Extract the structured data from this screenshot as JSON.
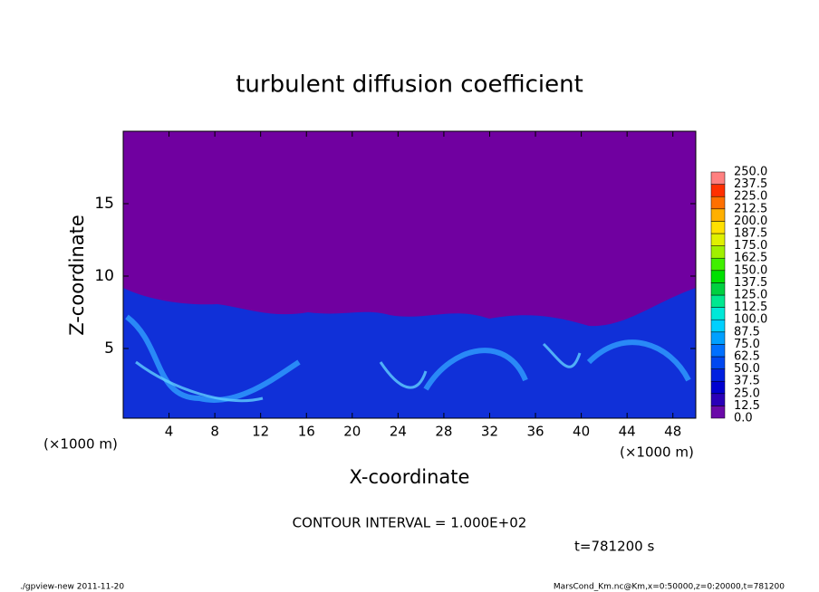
{
  "chart_data": {
    "type": "heatmap",
    "title": "turbulent diffusion coefficient",
    "xlabel": "X-coordinate",
    "ylabel": "Z-coordinate",
    "xunit": "(×1000 m)",
    "yunit": "(×1000 m)",
    "xlim": [
      0,
      50
    ],
    "xticks": [
      4,
      8,
      12,
      16,
      20,
      24,
      28,
      32,
      36,
      40,
      44,
      48
    ],
    "ylim": [
      0,
      20
    ],
    "yticks": [
      5,
      10,
      15
    ],
    "levels": [
      {
        "value": 0,
        "label": "0.0"
      },
      {
        "value": 12.5,
        "label": "12.5"
      },
      {
        "value": 25,
        "label": "25.0"
      },
      {
        "value": 37.5,
        "label": "37.5"
      },
      {
        "value": 50,
        "label": "50.0"
      },
      {
        "value": 62.5,
        "label": "62.5"
      },
      {
        "value": 75,
        "label": "75.0"
      },
      {
        "value": 87.5,
        "label": "87.5"
      },
      {
        "value": 100,
        "label": "100.0"
      },
      {
        "value": 112.5,
        "label": "112.5"
      },
      {
        "value": 125,
        "label": "125.0"
      },
      {
        "value": 137.5,
        "label": "137.5"
      },
      {
        "value": 150,
        "label": "150.0"
      },
      {
        "value": 162.5,
        "label": "162.5"
      },
      {
        "value": 175,
        "label": "175.0"
      },
      {
        "value": 187.5,
        "label": "187.5"
      },
      {
        "value": 200,
        "label": "200.0"
      },
      {
        "value": 212.5,
        "label": "212.5"
      },
      {
        "value": 225,
        "label": "225.0"
      },
      {
        "value": 237.5,
        "label": "237.5"
      },
      {
        "value": 250,
        "label": "250.0"
      }
    ],
    "colors": [
      "#6a0aa8",
      "#2a00b8",
      "#0000d0",
      "#0020e0",
      "#0048f0",
      "#0070ff",
      "#00a0ff",
      "#00d0ff",
      "#00e8d8",
      "#00e890",
      "#00d040",
      "#00e000",
      "#40f000",
      "#a0f000",
      "#e0f000",
      "#ffe000",
      "#ffb000",
      "#ff7000",
      "#ff3000",
      "#ff8080"
    ],
    "annotation": "CONTOUR INTERVAL = 1.000E+02",
    "time_label": "t=781200 s",
    "footer_left": "./gpview-new  2011-11-20",
    "footer_right": "MarsCond_Km.nc@Km,x=0:50000,z=0:20000,t=781200"
  }
}
